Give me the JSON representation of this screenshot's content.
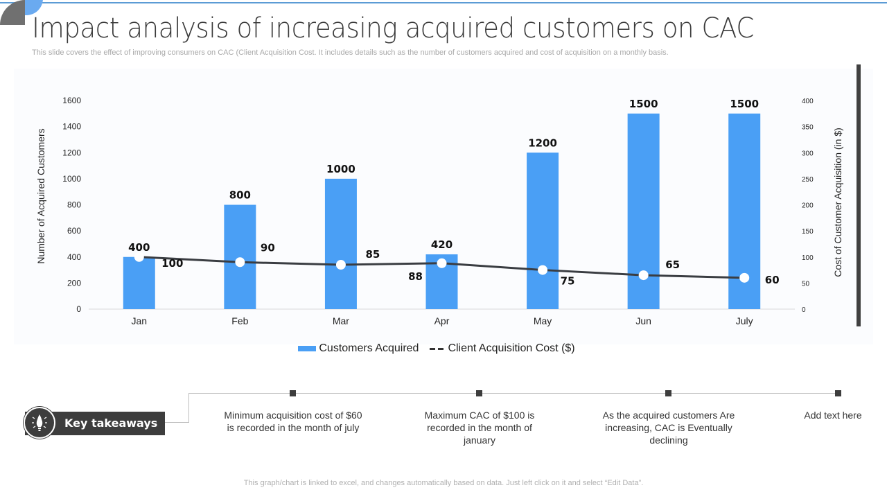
{
  "header": {
    "title": "Impact analysis of increasing acquired customers on CAC",
    "subtitle": "This slide covers the effect of improving consumers on CAC (Client Acquisition Cost. It includes details such as the number of customers acquired and cost of acquisition on a monthly basis."
  },
  "chart_data": {
    "type": "bar",
    "title": "",
    "categories": [
      "Jan",
      "Feb",
      "Mar",
      "Apr",
      "May",
      "Jun",
      "July"
    ],
    "series": [
      {
        "name": "Customers Acquired",
        "type": "bar",
        "axis": "left",
        "color": "#4a9ff5",
        "values": [
          400,
          800,
          1000,
          420,
          1200,
          1500,
          1500
        ]
      },
      {
        "name": "Client Acquisition Cost ($)",
        "type": "line",
        "axis": "right",
        "color": "#3a3d42",
        "values": [
          100,
          90,
          85,
          88,
          75,
          65,
          60
        ]
      }
    ],
    "ylabel": "Number of Acquired Customers",
    "ylabel_right": "Cost of Customer Acquisition (in $)",
    "xlabel": "",
    "ylim": [
      0,
      1600
    ],
    "yticks": [
      0,
      200,
      400,
      600,
      800,
      1000,
      1200,
      1400,
      1600
    ],
    "ylim_right": [
      0,
      400
    ],
    "yticks_right": [
      0,
      50,
      100,
      150,
      200,
      250,
      300,
      350,
      400
    ],
    "grid": false,
    "legend": "bottom",
    "legend_entries": [
      "Customers Acquired",
      "Client Acquisition Cost ($)"
    ]
  },
  "takeaways": {
    "label": "Key takeaways",
    "icon": "lightbulb-icon",
    "items": [
      "Minimum acquisition cost of $60 is recorded in the month of july",
      "Maximum CAC of $100 is recorded in the month of january",
      "As the acquired customers Are increasing, CAC is Eventually declining",
      "Add text here"
    ]
  },
  "footer": {
    "note": "This graph/chart is linked to excel,  and changes automatically based on data. Just left click on it and select “Edit Data”."
  }
}
